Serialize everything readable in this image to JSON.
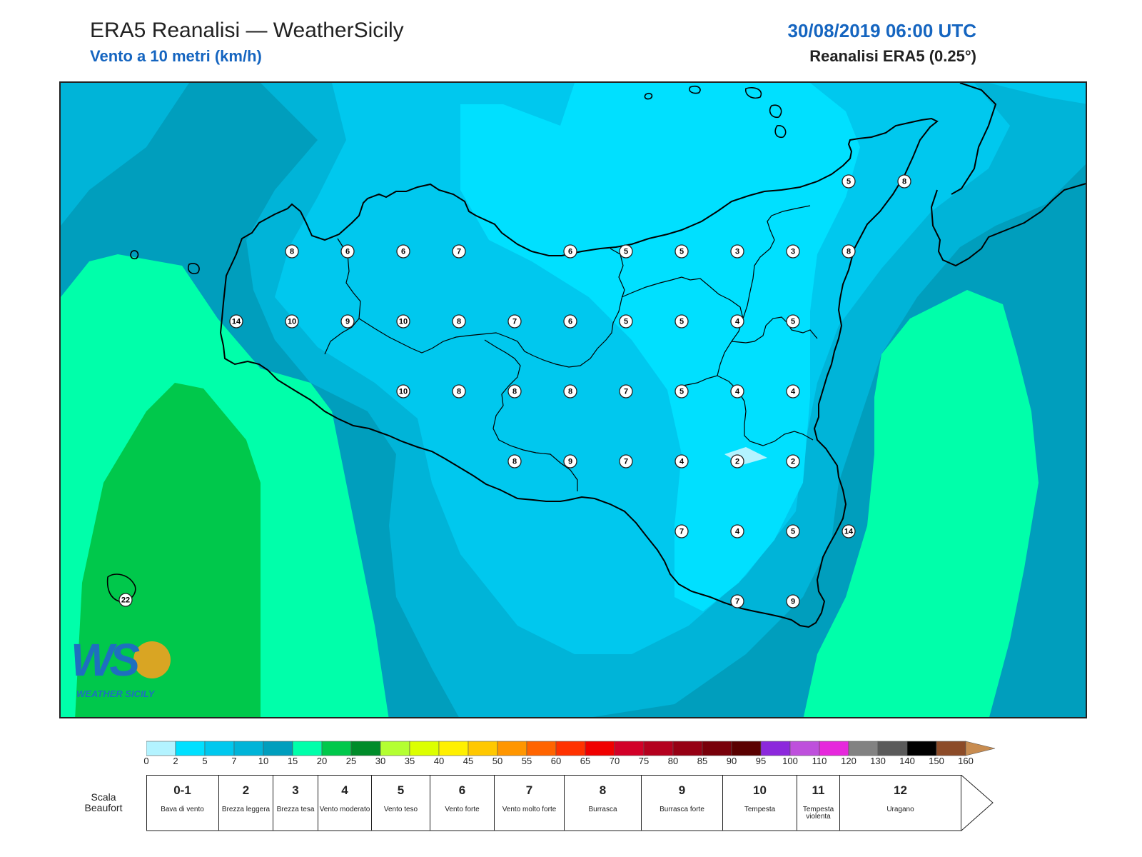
{
  "header": {
    "title": "ERA5 Reanalisi — WeatherSicily",
    "subtitle": "Vento a 10 metri (km/h)",
    "datetime": "30/08/2019 06:00 UTC",
    "model": "Reanalisi ERA5 (0.25°)"
  },
  "colors": {
    "band_0_2": "#b3f3ff",
    "band_2_5": "#00e0ff",
    "band_5_7": "#00c8ee",
    "band_7_10": "#00b4d8",
    "band_10_15": "#009ebd",
    "band_15_20": "#00ffaa",
    "band_20_25": "#00c84b",
    "coastline": "#000000"
  },
  "map": {
    "stations": [
      {
        "value": "5"
      },
      {
        "value": "8"
      },
      {
        "value": "8"
      },
      {
        "value": "6"
      },
      {
        "value": "6"
      },
      {
        "value": "7"
      },
      {
        "value": "6"
      },
      {
        "value": "5"
      },
      {
        "value": "5"
      },
      {
        "value": "3"
      },
      {
        "value": "3"
      },
      {
        "value": "8"
      },
      {
        "value": "14"
      },
      {
        "value": "10"
      },
      {
        "value": "9"
      },
      {
        "value": "10"
      },
      {
        "value": "8"
      },
      {
        "value": "7"
      },
      {
        "value": "6"
      },
      {
        "value": "5"
      },
      {
        "value": "5"
      },
      {
        "value": "4"
      },
      {
        "value": "5"
      },
      {
        "value": "10"
      },
      {
        "value": "8"
      },
      {
        "value": "8"
      },
      {
        "value": "8"
      },
      {
        "value": "7"
      },
      {
        "value": "5"
      },
      {
        "value": "4"
      },
      {
        "value": "4"
      },
      {
        "value": "8"
      },
      {
        "value": "9"
      },
      {
        "value": "7"
      },
      {
        "value": "4"
      },
      {
        "value": "2"
      },
      {
        "value": "2"
      },
      {
        "value": "7"
      },
      {
        "value": "4"
      },
      {
        "value": "5"
      },
      {
        "value": "14"
      },
      {
        "value": "7"
      },
      {
        "value": "9"
      },
      {
        "value": "22"
      }
    ],
    "logo": {
      "letters": "WS",
      "text": "WEATHER SICILY"
    }
  },
  "colorbar": {
    "colors": [
      "#b3f3ff",
      "#00e0ff",
      "#00c8ee",
      "#00b4d8",
      "#009ebd",
      "#00ffaa",
      "#00c84b",
      "#008c2a",
      "#b4ff32",
      "#dcff00",
      "#fff000",
      "#ffc800",
      "#ff9600",
      "#ff6400",
      "#ff3200",
      "#f00000",
      "#d20028",
      "#b4001e",
      "#960014",
      "#78000a",
      "#5a0000",
      "#8c28dc",
      "#be50dc",
      "#e628dc",
      "#828282",
      "#5a5a5a",
      "#000000",
      "#8c4b28",
      "#c88c50"
    ],
    "labels": [
      "0",
      "2",
      "5",
      "7",
      "10",
      "15",
      "20",
      "25",
      "30",
      "35",
      "40",
      "45",
      "50",
      "55",
      "60",
      "65",
      "70",
      "75",
      "80",
      "85",
      "90",
      "95",
      "100",
      "110",
      "120",
      "130",
      "140",
      "150",
      "160"
    ]
  },
  "beaufort": {
    "caption": "Scala Beaufort",
    "cells": [
      {
        "num": "0-1",
        "name": "Bava di vento"
      },
      {
        "num": "2",
        "name": "Brezza leggera"
      },
      {
        "num": "3",
        "name": "Brezza tesa"
      },
      {
        "num": "4",
        "name": "Vento moderato"
      },
      {
        "num": "5",
        "name": "Vento teso"
      },
      {
        "num": "6",
        "name": "Vento forte"
      },
      {
        "num": "7",
        "name": "Vento molto forte"
      },
      {
        "num": "8",
        "name": "Burrasca"
      },
      {
        "num": "9",
        "name": "Burrasca forte"
      },
      {
        "num": "10",
        "name": "Tempesta"
      },
      {
        "num": "11",
        "name": "Tempesta violenta"
      },
      {
        "num": "12",
        "name": "Uragano"
      }
    ]
  }
}
